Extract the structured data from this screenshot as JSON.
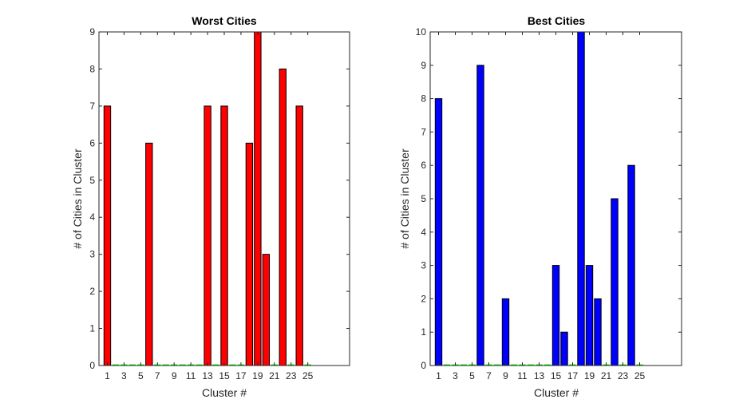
{
  "chart_data": [
    {
      "type": "bar",
      "title": "Worst Cities",
      "xlabel": "Cluster #",
      "ylabel": "# of Cities in Cluster",
      "x": [
        1,
        2,
        3,
        4,
        5,
        6,
        7,
        8,
        9,
        10,
        11,
        12,
        13,
        14,
        15,
        16,
        17,
        18,
        19,
        20,
        21,
        22,
        23,
        24,
        25
      ],
      "values": [
        7,
        0,
        0,
        0,
        0,
        6,
        0,
        0,
        0,
        0,
        0,
        0,
        7,
        0,
        7,
        0,
        0,
        6,
        9,
        3,
        0,
        8,
        0,
        7,
        0
      ],
      "xlim": [
        0,
        30
      ],
      "ylim": [
        0,
        9
      ],
      "xticks": [
        1,
        3,
        5,
        7,
        9,
        11,
        13,
        15,
        17,
        19,
        21,
        23,
        25
      ],
      "yticks": [
        0,
        1,
        2,
        3,
        4,
        5,
        6,
        7,
        8,
        9
      ],
      "bar_color": "#ff0000",
      "edge_color": "#000000",
      "zero_bar_color": "#00ff00",
      "grid": false
    },
    {
      "type": "bar",
      "title": "Best Cities",
      "xlabel": "Cluster #",
      "ylabel": "# of Cities in Cluster",
      "x": [
        1,
        2,
        3,
        4,
        5,
        6,
        7,
        8,
        9,
        10,
        11,
        12,
        13,
        14,
        15,
        16,
        17,
        18,
        19,
        20,
        21,
        22,
        23,
        24,
        25
      ],
      "values": [
        8,
        0,
        0,
        0,
        0,
        9,
        0,
        0,
        2,
        0,
        0,
        0,
        0,
        0,
        3,
        1,
        0,
        10,
        3,
        2,
        0,
        5,
        0,
        6,
        0
      ],
      "xlim": [
        0,
        30
      ],
      "ylim": [
        0,
        10
      ],
      "xticks": [
        1,
        3,
        5,
        7,
        9,
        11,
        13,
        15,
        17,
        19,
        21,
        23,
        25
      ],
      "yticks": [
        0,
        1,
        2,
        3,
        4,
        5,
        6,
        7,
        8,
        9,
        10
      ],
      "bar_color": "#0000ff",
      "edge_color": "#000000",
      "zero_bar_color": "#00ff00",
      "grid": false
    }
  ]
}
